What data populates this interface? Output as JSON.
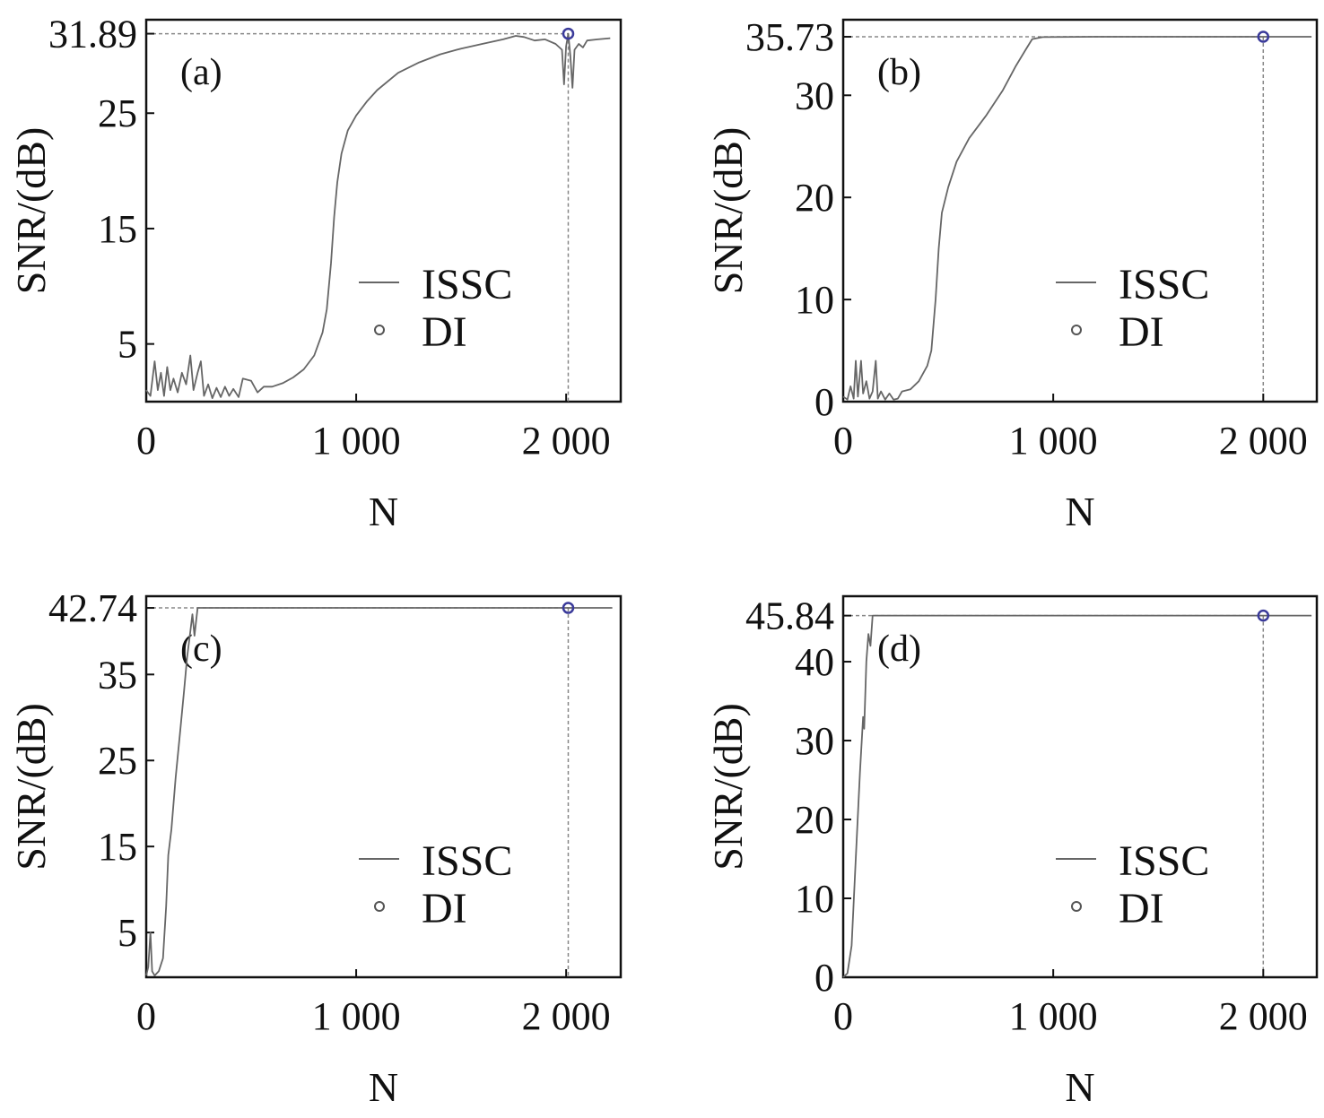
{
  "chart_data": [
    {
      "type": "line",
      "panel_label": "(a)",
      "xlabel": "N",
      "ylabel": "SNR/(dB)",
      "xlim": [
        0,
        2260
      ],
      "ylim": [
        0,
        33.1
      ],
      "xticks": [
        0,
        1000,
        2000
      ],
      "xtick_labels": [
        "0",
        "1 000",
        "2 000"
      ],
      "yticks": [
        5,
        15,
        25,
        31.89
      ],
      "ytick_labels": [
        "5",
        "15",
        "25",
        "31.89"
      ],
      "legend": [
        "ISSC",
        "DI"
      ],
      "legend_position": "center-right",
      "series": [
        {
          "name": "ISSC",
          "points": [
            [
              0,
              1
            ],
            [
              20,
              0.5
            ],
            [
              40,
              3.5
            ],
            [
              55,
              1
            ],
            [
              70,
              2.5
            ],
            [
              85,
              0.5
            ],
            [
              100,
              3
            ],
            [
              115,
              1
            ],
            [
              130,
              2
            ],
            [
              150,
              0.8
            ],
            [
              170,
              2.5
            ],
            [
              190,
              1.5
            ],
            [
              210,
              4
            ],
            [
              225,
              1
            ],
            [
              245,
              2.5
            ],
            [
              260,
              3.5
            ],
            [
              275,
              0.5
            ],
            [
              295,
              1.5
            ],
            [
              315,
              0.3
            ],
            [
              335,
              1.2
            ],
            [
              355,
              0.4
            ],
            [
              375,
              1.3
            ],
            [
              395,
              0.5
            ],
            [
              415,
              1.1
            ],
            [
              440,
              0.4
            ],
            [
              460,
              2
            ],
            [
              500,
              1.8
            ],
            [
              530,
              0.8
            ],
            [
              560,
              1.3
            ],
            [
              600,
              1.3
            ],
            [
              650,
              1.6
            ],
            [
              700,
              2.1
            ],
            [
              750,
              2.8
            ],
            [
              800,
              4
            ],
            [
              840,
              6
            ],
            [
              860,
              8
            ],
            [
              880,
              12
            ],
            [
              895,
              16
            ],
            [
              910,
              19
            ],
            [
              930,
              21.5
            ],
            [
              960,
              23.5
            ],
            [
              1000,
              24.8
            ],
            [
              1050,
              26
            ],
            [
              1100,
              27
            ],
            [
              1200,
              28.5
            ],
            [
              1300,
              29.4
            ],
            [
              1400,
              30.1
            ],
            [
              1500,
              30.6
            ],
            [
              1600,
              31
            ],
            [
              1700,
              31.4
            ],
            [
              1760,
              31.7
            ],
            [
              1800,
              31.6
            ],
            [
              1850,
              31.3
            ],
            [
              1900,
              31.4
            ],
            [
              1950,
              31
            ],
            [
              1980,
              30.5
            ],
            [
              1990,
              27.5
            ],
            [
              2000,
              30.8
            ],
            [
              2010,
              31.89
            ],
            [
              2020,
              30
            ],
            [
              2030,
              27.2
            ],
            [
              2040,
              30.5
            ],
            [
              2060,
              31
            ],
            [
              2080,
              30.7
            ],
            [
              2100,
              31.3
            ],
            [
              2150,
              31.4
            ],
            [
              2210,
              31.5
            ]
          ]
        },
        {
          "name": "DI",
          "points": [
            [
              2010,
              31.89
            ]
          ]
        }
      ]
    },
    {
      "type": "line",
      "panel_label": "(b)",
      "xlabel": "N",
      "ylabel": "SNR/(dB)",
      "xlim": [
        0,
        2255
      ],
      "ylim": [
        0,
        37.4
      ],
      "xticks": [
        0,
        1000,
        2000
      ],
      "xtick_labels": [
        "0",
        "1 000",
        "2 000"
      ],
      "yticks": [
        0,
        10,
        20,
        30,
        35.73
      ],
      "ytick_labels": [
        "0",
        "10",
        "20",
        "30",
        "35.73"
      ],
      "legend": [
        "ISSC",
        "DI"
      ],
      "legend_position": "center-right",
      "series": [
        {
          "name": "ISSC",
          "points": [
            [
              0,
              0.5
            ],
            [
              20,
              0.2
            ],
            [
              35,
              1.5
            ],
            [
              50,
              0.3
            ],
            [
              60,
              4
            ],
            [
              70,
              0.5
            ],
            [
              85,
              4
            ],
            [
              95,
              0.8
            ],
            [
              110,
              2
            ],
            [
              125,
              0.3
            ],
            [
              140,
              1
            ],
            [
              155,
              4
            ],
            [
              165,
              0.3
            ],
            [
              180,
              1
            ],
            [
              200,
              0.2
            ],
            [
              220,
              0.8
            ],
            [
              240,
              0.2
            ],
            [
              260,
              0.3
            ],
            [
              280,
              1
            ],
            [
              320,
              1.2
            ],
            [
              360,
              2
            ],
            [
              400,
              3.5
            ],
            [
              420,
              5
            ],
            [
              440,
              10
            ],
            [
              455,
              15
            ],
            [
              470,
              18.5
            ],
            [
              500,
              21
            ],
            [
              540,
              23.5
            ],
            [
              600,
              25.8
            ],
            [
              680,
              28
            ],
            [
              760,
              30.5
            ],
            [
              820,
              32.8
            ],
            [
              870,
              34.5
            ],
            [
              900,
              35.5
            ],
            [
              950,
              35.7
            ],
            [
              1200,
              35.73
            ],
            [
              2230,
              35.73
            ]
          ]
        },
        {
          "name": "DI",
          "points": [
            [
              2000,
              35.73
            ]
          ]
        }
      ]
    },
    {
      "type": "line",
      "panel_label": "(c)",
      "xlabel": "N",
      "ylabel": "SNR/(dB)",
      "xlim": [
        0,
        2260
      ],
      "ylim": [
        -0.2,
        44.1
      ],
      "xticks": [
        0,
        1000,
        2000
      ],
      "xtick_labels": [
        "0",
        "1 000",
        "2 000"
      ],
      "yticks": [
        5,
        15,
        25,
        35,
        42.74
      ],
      "ytick_labels": [
        "5",
        "15",
        "25",
        "35",
        "42.74"
      ],
      "legend": [
        "ISSC",
        "DI"
      ],
      "legend_position": "center-right",
      "series": [
        {
          "name": "ISSC",
          "points": [
            [
              0,
              0
            ],
            [
              10,
              1
            ],
            [
              20,
              5
            ],
            [
              28,
              0.5
            ],
            [
              40,
              0
            ],
            [
              60,
              0.5
            ],
            [
              80,
              2
            ],
            [
              95,
              8
            ],
            [
              105,
              14
            ],
            [
              120,
              17
            ],
            [
              140,
              23
            ],
            [
              160,
              28
            ],
            [
              180,
              33
            ],
            [
              195,
              37
            ],
            [
              210,
              40
            ],
            [
              220,
              42
            ],
            [
              230,
              39.5
            ],
            [
              245,
              42.74
            ],
            [
              400,
              42.74
            ],
            [
              2220,
              42.74
            ]
          ]
        },
        {
          "name": "DI",
          "points": [
            [
              2010,
              42.74
            ]
          ]
        }
      ]
    },
    {
      "type": "line",
      "panel_label": "(d)",
      "xlabel": "N",
      "ylabel": "SNR/(dB)",
      "xlim": [
        0,
        2255
      ],
      "ylim": [
        0,
        48.3
      ],
      "xticks": [
        0,
        1000,
        2000
      ],
      "xtick_labels": [
        "0",
        "1 000",
        "2 000"
      ],
      "yticks": [
        0,
        10,
        20,
        30,
        40,
        45.84
      ],
      "ytick_labels": [
        "0",
        "10",
        "20",
        "30",
        "40",
        "45.84"
      ],
      "legend": [
        "ISSC",
        "DI"
      ],
      "legend_position": "center-right",
      "series": [
        {
          "name": "ISSC",
          "points": [
            [
              0,
              0
            ],
            [
              20,
              0.5
            ],
            [
              40,
              4
            ],
            [
              60,
              15
            ],
            [
              80,
              26
            ],
            [
              95,
              33
            ],
            [
              100,
              31.5
            ],
            [
              110,
              40
            ],
            [
              120,
              43.5
            ],
            [
              130,
              42
            ],
            [
              140,
              45.84
            ],
            [
              300,
              45.84
            ],
            [
              2230,
              45.84
            ]
          ]
        },
        {
          "name": "DI",
          "points": [
            [
              2000,
              45.84
            ]
          ]
        }
      ]
    }
  ]
}
